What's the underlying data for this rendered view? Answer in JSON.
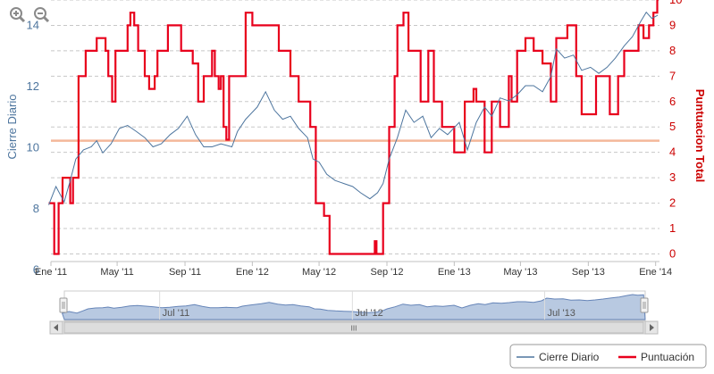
{
  "toolbar": {
    "zoom_in_icon": "zoom-in-icon",
    "zoom_out_icon": "zoom-out-icon"
  },
  "colors": {
    "cierre": "#4d759e",
    "puntuacion": "#e8001c",
    "baseline": "#f4b89a",
    "navigator_fill": "#b8c9e1",
    "grid": "#c8c8c8"
  },
  "navigator": {
    "labels": [
      "Jul '11",
      "Jul '12",
      "Jul '13"
    ],
    "scroll_glyph": "III"
  },
  "legend": {
    "items": [
      "Cierre Diario",
      "Puntuación"
    ]
  },
  "chart_data": {
    "type": "line",
    "x_ticks": [
      "Ene '11",
      "May '11",
      "Sep '11",
      "Ene '12",
      "May '12",
      "Sep '12",
      "Ene '13",
      "May '13",
      "Sep '13",
      "Ene '14"
    ],
    "x_range": [
      "2011-01-01",
      "2014-01-08"
    ],
    "y_left": {
      "label": "Cierre Diario",
      "ticks": [
        6,
        8,
        10,
        12,
        14
      ],
      "range": [
        6.25,
        14.8
      ]
    },
    "y_right": {
      "label": "Puntuacion Total",
      "ticks": [
        0,
        1,
        2,
        3,
        4,
        5,
        6,
        7,
        8,
        9,
        10
      ],
      "range": [
        -0.3,
        10
      ]
    },
    "reference_line": {
      "axis": "left",
      "value": 10.2
    },
    "grid": "horizontal dashed",
    "series": [
      {
        "name": "Cierre Diario",
        "axis": "left",
        "color": "#4d759e",
        "points": [
          [
            "2010-12-28",
            8.1
          ],
          [
            "2011-01-10",
            8.7
          ],
          [
            "2011-01-25",
            8.2
          ],
          [
            "2011-02-05",
            8.9
          ],
          [
            "2011-02-15",
            9.6
          ],
          [
            "2011-03-01",
            9.9
          ],
          [
            "2011-03-15",
            10.0
          ],
          [
            "2011-03-25",
            10.2
          ],
          [
            "2011-04-05",
            9.8
          ],
          [
            "2011-04-20",
            10.1
          ],
          [
            "2011-05-05",
            10.6
          ],
          [
            "2011-05-20",
            10.7
          ],
          [
            "2011-06-05",
            10.5
          ],
          [
            "2011-06-20",
            10.3
          ],
          [
            "2011-07-05",
            10.0
          ],
          [
            "2011-07-20",
            10.1
          ],
          [
            "2011-08-05",
            10.4
          ],
          [
            "2011-08-20",
            10.6
          ],
          [
            "2011-09-05",
            11.0
          ],
          [
            "2011-09-20",
            10.4
          ],
          [
            "2011-10-05",
            10.0
          ],
          [
            "2011-10-20",
            10.0
          ],
          [
            "2011-11-05",
            10.1
          ],
          [
            "2011-11-25",
            10.0
          ],
          [
            "2011-12-05",
            10.5
          ],
          [
            "2011-12-20",
            10.9
          ],
          [
            "2012-01-10",
            11.3
          ],
          [
            "2012-01-25",
            11.8
          ],
          [
            "2012-02-10",
            11.2
          ],
          [
            "2012-02-25",
            10.9
          ],
          [
            "2012-03-10",
            11.0
          ],
          [
            "2012-03-25",
            10.6
          ],
          [
            "2012-04-10",
            10.3
          ],
          [
            "2012-04-20",
            9.6
          ],
          [
            "2012-05-01",
            9.5
          ],
          [
            "2012-05-15",
            9.1
          ],
          [
            "2012-05-30",
            8.9
          ],
          [
            "2012-06-15",
            8.8
          ],
          [
            "2012-07-01",
            8.7
          ],
          [
            "2012-07-15",
            8.5
          ],
          [
            "2012-08-01",
            8.3
          ],
          [
            "2012-08-15",
            8.5
          ],
          [
            "2012-08-25",
            8.8
          ],
          [
            "2012-09-05",
            9.6
          ],
          [
            "2012-09-20",
            10.3
          ],
          [
            "2012-10-05",
            11.2
          ],
          [
            "2012-10-20",
            10.8
          ],
          [
            "2012-11-05",
            11.0
          ],
          [
            "2012-11-20",
            10.3
          ],
          [
            "2012-12-05",
            10.6
          ],
          [
            "2012-12-20",
            10.4
          ],
          [
            "2013-01-10",
            10.8
          ],
          [
            "2013-01-25",
            9.9
          ],
          [
            "2013-02-10",
            10.8
          ],
          [
            "2013-02-25",
            11.3
          ],
          [
            "2013-03-10",
            11.0
          ],
          [
            "2013-03-25",
            11.6
          ],
          [
            "2013-04-10",
            11.5
          ],
          [
            "2013-04-25",
            11.7
          ],
          [
            "2013-05-10",
            12.0
          ],
          [
            "2013-05-25",
            12.0
          ],
          [
            "2013-06-10",
            11.8
          ],
          [
            "2013-06-25",
            12.3
          ],
          [
            "2013-07-05",
            13.2
          ],
          [
            "2013-07-20",
            12.9
          ],
          [
            "2013-08-05",
            13.0
          ],
          [
            "2013-08-20",
            12.5
          ],
          [
            "2013-09-05",
            12.6
          ],
          [
            "2013-09-20",
            12.4
          ],
          [
            "2013-10-05",
            12.6
          ],
          [
            "2013-10-20",
            12.9
          ],
          [
            "2013-11-05",
            13.3
          ],
          [
            "2013-11-20",
            13.6
          ],
          [
            "2013-12-05",
            14.1
          ],
          [
            "2013-12-15",
            14.4
          ],
          [
            "2013-12-25",
            14.2
          ],
          [
            "2014-01-05",
            14.3
          ]
        ]
      },
      {
        "name": "Puntuación",
        "axis": "right",
        "color": "#e8001c",
        "step": true,
        "points": [
          [
            "2010-12-28",
            2
          ],
          [
            "2011-01-07",
            0
          ],
          [
            "2011-01-15",
            2
          ],
          [
            "2011-01-22",
            3
          ],
          [
            "2011-02-05",
            2
          ],
          [
            "2011-02-10",
            3
          ],
          [
            "2011-02-20",
            7
          ],
          [
            "2011-03-05",
            8
          ],
          [
            "2011-03-25",
            8.5
          ],
          [
            "2011-04-10",
            8
          ],
          [
            "2011-04-15",
            7
          ],
          [
            "2011-04-22",
            6
          ],
          [
            "2011-04-28",
            8
          ],
          [
            "2011-05-10",
            8
          ],
          [
            "2011-05-20",
            9
          ],
          [
            "2011-05-25",
            9.5
          ],
          [
            "2011-06-01",
            9
          ],
          [
            "2011-06-08",
            8
          ],
          [
            "2011-06-20",
            7
          ],
          [
            "2011-06-28",
            6.5
          ],
          [
            "2011-07-08",
            7
          ],
          [
            "2011-07-13",
            8
          ],
          [
            "2011-07-20",
            8
          ],
          [
            "2011-08-01",
            9
          ],
          [
            "2011-08-15",
            9
          ],
          [
            "2011-08-25",
            8
          ],
          [
            "2011-09-15",
            7.5
          ],
          [
            "2011-09-25",
            6
          ],
          [
            "2011-10-05",
            7
          ],
          [
            "2011-10-20",
            8
          ],
          [
            "2011-10-25",
            7
          ],
          [
            "2011-11-01",
            6.5
          ],
          [
            "2011-11-05",
            7
          ],
          [
            "2011-11-10",
            5
          ],
          [
            "2011-11-15",
            4.5
          ],
          [
            "2011-11-20",
            7
          ],
          [
            "2011-12-20",
            9.5
          ],
          [
            "2012-01-01",
            9
          ],
          [
            "2012-02-01",
            9
          ],
          [
            "2012-02-10",
            9
          ],
          [
            "2012-02-18",
            8
          ],
          [
            "2012-03-10",
            7
          ],
          [
            "2012-03-25",
            6
          ],
          [
            "2012-04-15",
            5
          ],
          [
            "2012-04-25",
            2
          ],
          [
            "2012-05-10",
            1.5
          ],
          [
            "2012-05-20",
            0
          ],
          [
            "2012-06-15",
            0
          ],
          [
            "2012-07-20",
            0
          ],
          [
            "2012-08-10",
            0.5
          ],
          [
            "2012-08-13",
            0
          ],
          [
            "2012-08-25",
            2
          ],
          [
            "2012-09-05",
            5
          ],
          [
            "2012-09-15",
            7
          ],
          [
            "2012-09-20",
            9
          ],
          [
            "2012-10-01",
            9.5
          ],
          [
            "2012-10-10",
            8
          ],
          [
            "2012-11-01",
            6
          ],
          [
            "2012-11-15",
            8
          ],
          [
            "2012-11-25",
            6
          ],
          [
            "2012-12-10",
            5
          ],
          [
            "2013-01-01",
            4
          ],
          [
            "2013-01-20",
            6
          ],
          [
            "2013-02-05",
            6.5
          ],
          [
            "2013-02-10",
            6
          ],
          [
            "2013-02-25",
            4
          ],
          [
            "2013-03-10",
            6
          ],
          [
            "2013-03-25",
            5
          ],
          [
            "2013-04-10",
            7
          ],
          [
            "2013-04-15",
            6
          ],
          [
            "2013-04-25",
            8
          ],
          [
            "2013-05-10",
            8.5
          ],
          [
            "2013-05-25",
            8
          ],
          [
            "2013-06-10",
            7.5
          ],
          [
            "2013-06-25",
            6
          ],
          [
            "2013-07-05",
            8.5
          ],
          [
            "2013-07-25",
            9
          ],
          [
            "2013-08-10",
            7
          ],
          [
            "2013-08-20",
            5.5
          ],
          [
            "2013-09-05",
            5.5
          ],
          [
            "2013-09-15",
            7
          ],
          [
            "2013-10-10",
            5.5
          ],
          [
            "2013-10-25",
            7
          ],
          [
            "2013-11-05",
            8
          ],
          [
            "2013-11-20",
            8
          ],
          [
            "2013-12-01",
            9
          ],
          [
            "2013-12-10",
            8.5
          ],
          [
            "2013-12-20",
            9
          ],
          [
            "2013-12-28",
            9.5
          ],
          [
            "2014-01-04",
            10
          ],
          [
            "2014-01-06",
            10
          ]
        ]
      }
    ]
  }
}
